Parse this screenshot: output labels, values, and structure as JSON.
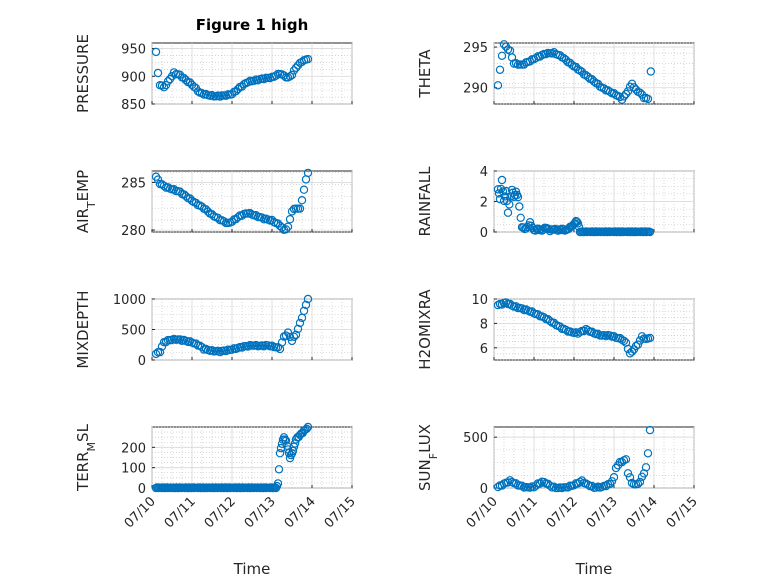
{
  "figure_title": "Figure 1 high",
  "x_label": "Time",
  "colors": {
    "marker": "#0072BD",
    "axis": "#262626",
    "grid": "#bdbdbd"
  },
  "chart_data": [
    {
      "type": "scatter",
      "ylabel": "PRESSURE",
      "ylim": [
        850,
        960
      ],
      "yticks": [
        850,
        900,
        950
      ],
      "xlim": [
        0,
        5
      ],
      "xticks": [
        "07/10",
        "07/11",
        "07/12",
        "07/13",
        "07/14",
        "07/15"
      ],
      "knots": [
        [
          0.1,
          944
        ],
        [
          0.15,
          905
        ],
        [
          0.2,
          885
        ],
        [
          0.3,
          880
        ],
        [
          0.4,
          890
        ],
        [
          0.55,
          906
        ],
        [
          0.7,
          902
        ],
        [
          0.85,
          893
        ],
        [
          1.0,
          885
        ],
        [
          1.2,
          870
        ],
        [
          1.4,
          866
        ],
        [
          1.6,
          864
        ],
        [
          1.8,
          865
        ],
        [
          2.0,
          868
        ],
        [
          2.2,
          880
        ],
        [
          2.4,
          890
        ],
        [
          2.6,
          893
        ],
        [
          2.8,
          896
        ],
        [
          3.0,
          898
        ],
        [
          3.2,
          905
        ],
        [
          3.4,
          897
        ],
        [
          3.5,
          903
        ],
        [
          3.6,
          916
        ],
        [
          3.75,
          927
        ],
        [
          3.9,
          931
        ]
      ]
    },
    {
      "type": "scatter",
      "ylabel": "THETA",
      "ylim": [
        288,
        295.5
      ],
      "yticks": [
        290,
        295
      ],
      "xlim": [
        0,
        5
      ],
      "xticks": [
        "07/10",
        "07/11",
        "07/12",
        "07/13",
        "07/14",
        "07/15"
      ],
      "knots": [
        [
          0.1,
          290.3
        ],
        [
          0.2,
          294
        ],
        [
          0.25,
          295.3
        ],
        [
          0.4,
          294.5
        ],
        [
          0.5,
          293
        ],
        [
          0.7,
          292.8
        ],
        [
          0.9,
          293.3
        ],
        [
          1.1,
          293.8
        ],
        [
          1.3,
          294.2
        ],
        [
          1.5,
          294.3
        ],
        [
          1.7,
          293.8
        ],
        [
          1.9,
          293
        ],
        [
          2.1,
          292.3
        ],
        [
          2.3,
          291.5
        ],
        [
          2.5,
          290.8
        ],
        [
          2.7,
          290
        ],
        [
          2.9,
          289.5
        ],
        [
          3.1,
          289
        ],
        [
          3.2,
          288.6
        ],
        [
          3.3,
          289.2
        ],
        [
          3.45,
          290.5
        ],
        [
          3.55,
          289.7
        ],
        [
          3.65,
          289.4
        ],
        [
          3.75,
          288.8
        ],
        [
          3.85,
          288.6
        ],
        [
          3.92,
          292
        ]
      ]
    },
    {
      "type": "scatter",
      "ylabel": "AIR_TEMP",
      "ylim": [
        279.8,
        286.2
      ],
      "yticks": [
        280,
        285
      ],
      "xlim": [
        0,
        5
      ],
      "xticks": [
        "07/10",
        "07/11",
        "07/12",
        "07/13",
        "07/14",
        "07/15"
      ],
      "knots": [
        [
          0.1,
          285.6
        ],
        [
          0.2,
          284.9
        ],
        [
          0.35,
          284.5
        ],
        [
          0.5,
          284.3
        ],
        [
          0.7,
          284.0
        ],
        [
          0.9,
          283.4
        ],
        [
          1.1,
          282.8
        ],
        [
          1.3,
          282.3
        ],
        [
          1.5,
          281.6
        ],
        [
          1.7,
          281.1
        ],
        [
          1.9,
          280.7
        ],
        [
          2.0,
          280.9
        ],
        [
          2.2,
          281.5
        ],
        [
          2.4,
          281.8
        ],
        [
          2.6,
          281.5
        ],
        [
          2.8,
          281.2
        ],
        [
          3.0,
          281.0
        ],
        [
          3.2,
          280.5
        ],
        [
          3.3,
          280.0
        ],
        [
          3.4,
          280.3
        ],
        [
          3.5,
          282.0
        ],
        [
          3.6,
          282.3
        ],
        [
          3.7,
          282.2
        ],
        [
          3.8,
          284.2
        ],
        [
          3.85,
          285.3
        ],
        [
          3.9,
          286.0
        ]
      ]
    },
    {
      "type": "scatter",
      "ylabel": "RAINFALL",
      "ylim": [
        0,
        4
      ],
      "yticks": [
        0,
        2,
        4
      ],
      "xlim": [
        0,
        5
      ],
      "xticks": [
        "07/10",
        "07/11",
        "07/12",
        "07/13",
        "07/14",
        "07/15"
      ],
      "knots": [
        [
          0.1,
          2.8
        ],
        [
          0.15,
          2.2
        ],
        [
          0.2,
          3.4
        ],
        [
          0.25,
          2.0
        ],
        [
          0.3,
          2.7
        ],
        [
          0.35,
          1.3
        ],
        [
          0.45,
          2.8
        ],
        [
          0.5,
          2.3
        ],
        [
          0.55,
          2.6
        ],
        [
          0.6,
          2.3
        ],
        [
          0.7,
          0.3
        ],
        [
          0.8,
          0.2
        ],
        [
          0.9,
          0.6
        ],
        [
          1.0,
          0.1
        ],
        [
          1.1,
          0.2
        ],
        [
          1.2,
          0.1
        ],
        [
          1.3,
          0.3
        ],
        [
          1.4,
          0.1
        ],
        [
          1.5,
          0.2
        ],
        [
          1.6,
          0.1
        ],
        [
          1.7,
          0.2
        ],
        [
          1.8,
          0.1
        ],
        [
          1.9,
          0.3
        ],
        [
          2.0,
          0.5
        ],
        [
          2.05,
          0.7
        ],
        [
          2.1,
          0.6
        ],
        [
          2.15,
          0.0
        ],
        [
          3.9,
          0.0
        ]
      ]
    },
    {
      "type": "scatter",
      "ylabel": "MIXDEPTH",
      "ylim": [
        0,
        1000
      ],
      "yticks": [
        0,
        500,
        1000
      ],
      "xlim": [
        0,
        5
      ],
      "xticks": [
        "07/10",
        "07/11",
        "07/12",
        "07/13",
        "07/14",
        "07/15"
      ],
      "knots": [
        [
          0.1,
          100
        ],
        [
          0.2,
          140
        ],
        [
          0.3,
          290
        ],
        [
          0.45,
          330
        ],
        [
          0.6,
          340
        ],
        [
          0.8,
          320
        ],
        [
          1.0,
          290
        ],
        [
          1.2,
          230
        ],
        [
          1.3,
          180
        ],
        [
          1.5,
          150
        ],
        [
          1.7,
          140
        ],
        [
          1.9,
          160
        ],
        [
          2.1,
          190
        ],
        [
          2.3,
          220
        ],
        [
          2.5,
          240
        ],
        [
          2.7,
          230
        ],
        [
          2.9,
          240
        ],
        [
          3.1,
          210
        ],
        [
          3.2,
          190
        ],
        [
          3.3,
          380
        ],
        [
          3.4,
          440
        ],
        [
          3.5,
          320
        ],
        [
          3.6,
          420
        ],
        [
          3.7,
          600
        ],
        [
          3.8,
          800
        ],
        [
          3.9,
          1000
        ]
      ]
    },
    {
      "type": "scatter",
      "ylabel": "H2OMIXRA",
      "ylim": [
        5,
        10
      ],
      "yticks": [
        6,
        8,
        10
      ],
      "xlim": [
        0,
        5
      ],
      "xticks": [
        "07/10",
        "07/11",
        "07/12",
        "07/13",
        "07/14",
        "07/15"
      ],
      "knots": [
        [
          0.1,
          9.5
        ],
        [
          0.3,
          9.7
        ],
        [
          0.5,
          9.4
        ],
        [
          0.7,
          9.2
        ],
        [
          0.9,
          9.0
        ],
        [
          1.1,
          8.7
        ],
        [
          1.3,
          8.4
        ],
        [
          1.5,
          8.0
        ],
        [
          1.7,
          7.6
        ],
        [
          1.9,
          7.3
        ],
        [
          2.1,
          7.2
        ],
        [
          2.3,
          7.5
        ],
        [
          2.5,
          7.2
        ],
        [
          2.7,
          7.0
        ],
        [
          2.9,
          7.0
        ],
        [
          3.1,
          6.8
        ],
        [
          3.2,
          6.7
        ],
        [
          3.3,
          6.4
        ],
        [
          3.4,
          5.5
        ],
        [
          3.5,
          5.9
        ],
        [
          3.6,
          6.3
        ],
        [
          3.7,
          6.9
        ],
        [
          3.8,
          6.7
        ],
        [
          3.9,
          6.8
        ]
      ]
    },
    {
      "type": "scatter",
      "ylabel": "TERR_MSL",
      "ylim": [
        0,
        300
      ],
      "yticks": [
        0,
        100,
        200
      ],
      "xlim": [
        0,
        5
      ],
      "xticks": [
        "07/10",
        "07/11",
        "07/12",
        "07/13",
        "07/14",
        "07/15"
      ],
      "knots": [
        [
          0.1,
          0
        ],
        [
          3.1,
          0
        ],
        [
          3.15,
          20
        ],
        [
          3.2,
          170
        ],
        [
          3.25,
          220
        ],
        [
          3.3,
          250
        ],
        [
          3.35,
          230
        ],
        [
          3.4,
          190
        ],
        [
          3.45,
          150
        ],
        [
          3.5,
          170
        ],
        [
          3.55,
          200
        ],
        [
          3.6,
          240
        ],
        [
          3.7,
          260
        ],
        [
          3.8,
          280
        ],
        [
          3.9,
          300
        ]
      ]
    },
    {
      "type": "scatter",
      "ylabel": "SUN_FLUX",
      "ylim": [
        0,
        600
      ],
      "yticks": [
        0,
        500
      ],
      "xlim": [
        0,
        5
      ],
      "xticks": [
        "07/10",
        "07/11",
        "07/12",
        "07/13",
        "07/14",
        "07/15"
      ],
      "knots": [
        [
          0.1,
          10
        ],
        [
          0.25,
          40
        ],
        [
          0.4,
          70
        ],
        [
          0.5,
          50
        ],
        [
          0.6,
          30
        ],
        [
          0.8,
          5
        ],
        [
          1.0,
          10
        ],
        [
          1.1,
          40
        ],
        [
          1.2,
          60
        ],
        [
          1.3,
          50
        ],
        [
          1.45,
          10
        ],
        [
          1.6,
          0
        ],
        [
          1.8,
          5
        ],
        [
          2.0,
          30
        ],
        [
          2.1,
          50
        ],
        [
          2.2,
          70
        ],
        [
          2.3,
          40
        ],
        [
          2.5,
          5
        ],
        [
          2.7,
          10
        ],
        [
          2.9,
          40
        ],
        [
          3.0,
          100
        ],
        [
          3.05,
          200
        ],
        [
          3.15,
          250
        ],
        [
          3.25,
          270
        ],
        [
          3.3,
          280
        ],
        [
          3.35,
          150
        ],
        [
          3.45,
          50
        ],
        [
          3.55,
          30
        ],
        [
          3.65,
          60
        ],
        [
          3.75,
          150
        ],
        [
          3.8,
          200
        ],
        [
          3.85,
          340
        ],
        [
          3.9,
          570
        ]
      ]
    }
  ]
}
